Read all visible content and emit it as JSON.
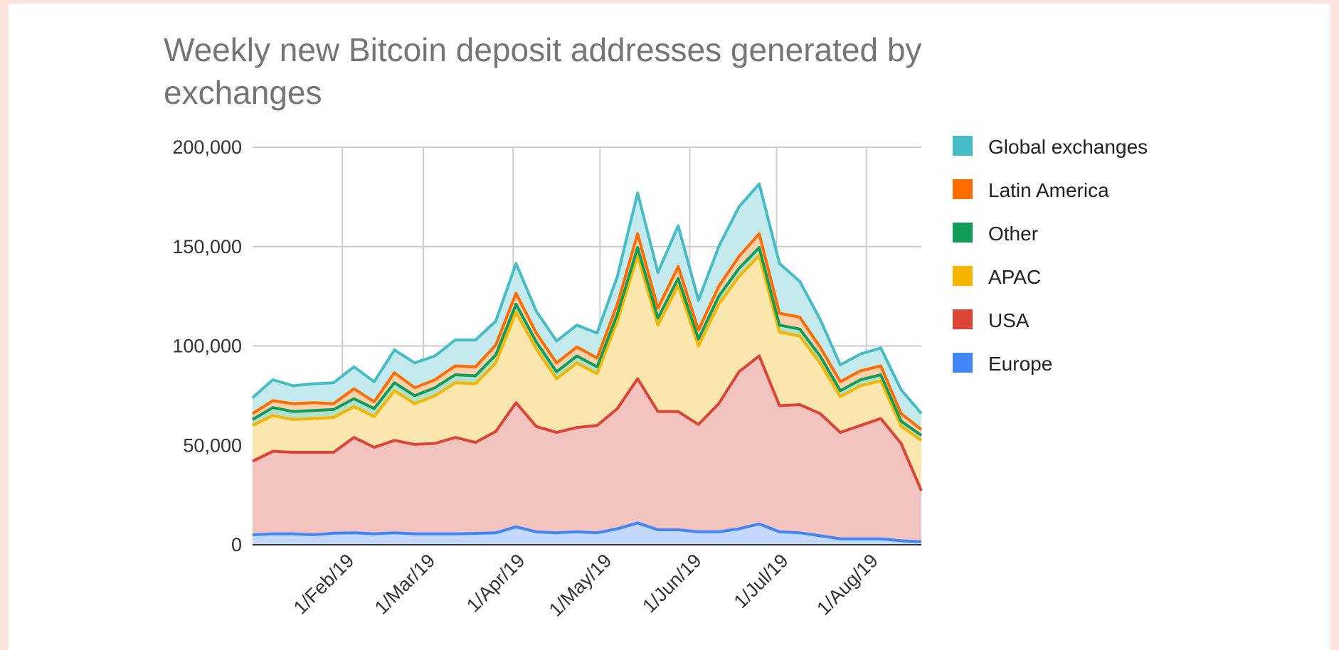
{
  "chart_data": {
    "type": "area",
    "stacked": true,
    "title": "Weekly new Bitcoin deposit addresses generated by exchanges",
    "xlabel": "",
    "ylabel": "",
    "ylim": [
      0,
      200000
    ],
    "yticks": [
      0,
      50000,
      100000,
      150000,
      200000
    ],
    "ytick_labels": [
      "0",
      "50,000",
      "100,000",
      "150,000",
      "200,000"
    ],
    "xtick_labels": [
      "1/Feb/19",
      "1/Mar/19",
      "1/Apr/19",
      "1/May/19",
      "1/Jun/19",
      "1/Jul/19",
      "1/Aug/19"
    ],
    "xtick_dates": [
      "2019-02-01",
      "2019-03-01",
      "2019-04-01",
      "2019-05-01",
      "2019-06-01",
      "2019-07-01",
      "2019-08-01"
    ],
    "xlim": [
      "2019-01-01",
      "2019-08-20"
    ],
    "x": [
      "2019-01-01",
      "2019-01-08",
      "2019-01-15",
      "2019-01-22",
      "2019-01-29",
      "2019-02-05",
      "2019-02-12",
      "2019-02-19",
      "2019-02-26",
      "2019-03-05",
      "2019-03-12",
      "2019-03-19",
      "2019-03-26",
      "2019-04-02",
      "2019-04-09",
      "2019-04-16",
      "2019-04-23",
      "2019-04-30",
      "2019-05-07",
      "2019-05-14",
      "2019-05-21",
      "2019-05-28",
      "2019-06-04",
      "2019-06-11",
      "2019-06-18",
      "2019-06-25",
      "2019-07-02",
      "2019-07-09",
      "2019-07-16",
      "2019-07-23",
      "2019-07-30",
      "2019-08-06",
      "2019-08-13",
      "2019-08-20"
    ],
    "grid": true,
    "legend_position": "right",
    "series": [
      {
        "name": "Europe",
        "color": "#4285f4",
        "values": [
          5000,
          5500,
          5500,
          5000,
          5800,
          6000,
          5500,
          6000,
          5500,
          5500,
          5500,
          5700,
          6000,
          9000,
          6500,
          6000,
          6500,
          6000,
          8000,
          11000,
          7500,
          7500,
          6500,
          6500,
          8000,
          10500,
          6500,
          6000,
          4500,
          3000,
          3000,
          3000,
          2000,
          1500
        ]
      },
      {
        "name": "USA",
        "color": "#db4437",
        "values": [
          37000,
          41500,
          41000,
          41500,
          40700,
          48000,
          43500,
          46500,
          45000,
          45500,
          48500,
          45800,
          51000,
          62500,
          53000,
          50500,
          52500,
          54000,
          60500,
          72500,
          59500,
          59500,
          54000,
          64500,
          79000,
          84500,
          63500,
          64500,
          61500,
          53500,
          57000,
          60500,
          49000,
          25700
        ]
      },
      {
        "name": "APAC",
        "color": "#f4b400",
        "values": [
          18000,
          18000,
          16500,
          17000,
          17500,
          15500,
          15500,
          25000,
          20500,
          24000,
          27500,
          29500,
          34500,
          45500,
          39000,
          27000,
          32500,
          26000,
          44000,
          62000,
          43500,
          63500,
          39500,
          50000,
          48000,
          50500,
          37000,
          34500,
          25500,
          18000,
          20000,
          19000,
          8700,
          25300
        ]
      },
      {
        "name": "Other",
        "color": "#0f9d58",
        "values": [
          3000,
          4000,
          4000,
          4000,
          4000,
          4000,
          4000,
          4000,
          4000,
          4000,
          4000,
          4000,
          4000,
          4000,
          3500,
          3500,
          3500,
          3500,
          3500,
          4000,
          3500,
          3500,
          3500,
          4000,
          4000,
          4000,
          3500,
          3500,
          3500,
          3000,
          3000,
          3000,
          2500,
          2500
        ]
      },
      {
        "name": "Latin America",
        "color": "#ff6d01",
        "values": [
          3000,
          3500,
          4000,
          4000,
          3000,
          5000,
          3500,
          5000,
          4000,
          4000,
          4500,
          4500,
          5000,
          5500,
          4500,
          4500,
          4500,
          4500,
          5000,
          7000,
          5000,
          6000,
          4500,
          5000,
          6000,
          7000,
          6000,
          6000,
          4500,
          4500,
          4500,
          4500,
          3800,
          3000
        ]
      },
      {
        "name": "Global exchanges",
        "color": "#46bdc6",
        "values": [
          8000,
          10500,
          9000,
          9500,
          10500,
          11000,
          10000,
          11500,
          12500,
          12000,
          13000,
          13500,
          12000,
          15000,
          11000,
          11000,
          11000,
          12500,
          14000,
          20500,
          18000,
          20500,
          15000,
          20000,
          25000,
          25000,
          25000,
          18000,
          14000,
          8500,
          8500,
          9000,
          12000,
          8000
        ]
      }
    ]
  }
}
